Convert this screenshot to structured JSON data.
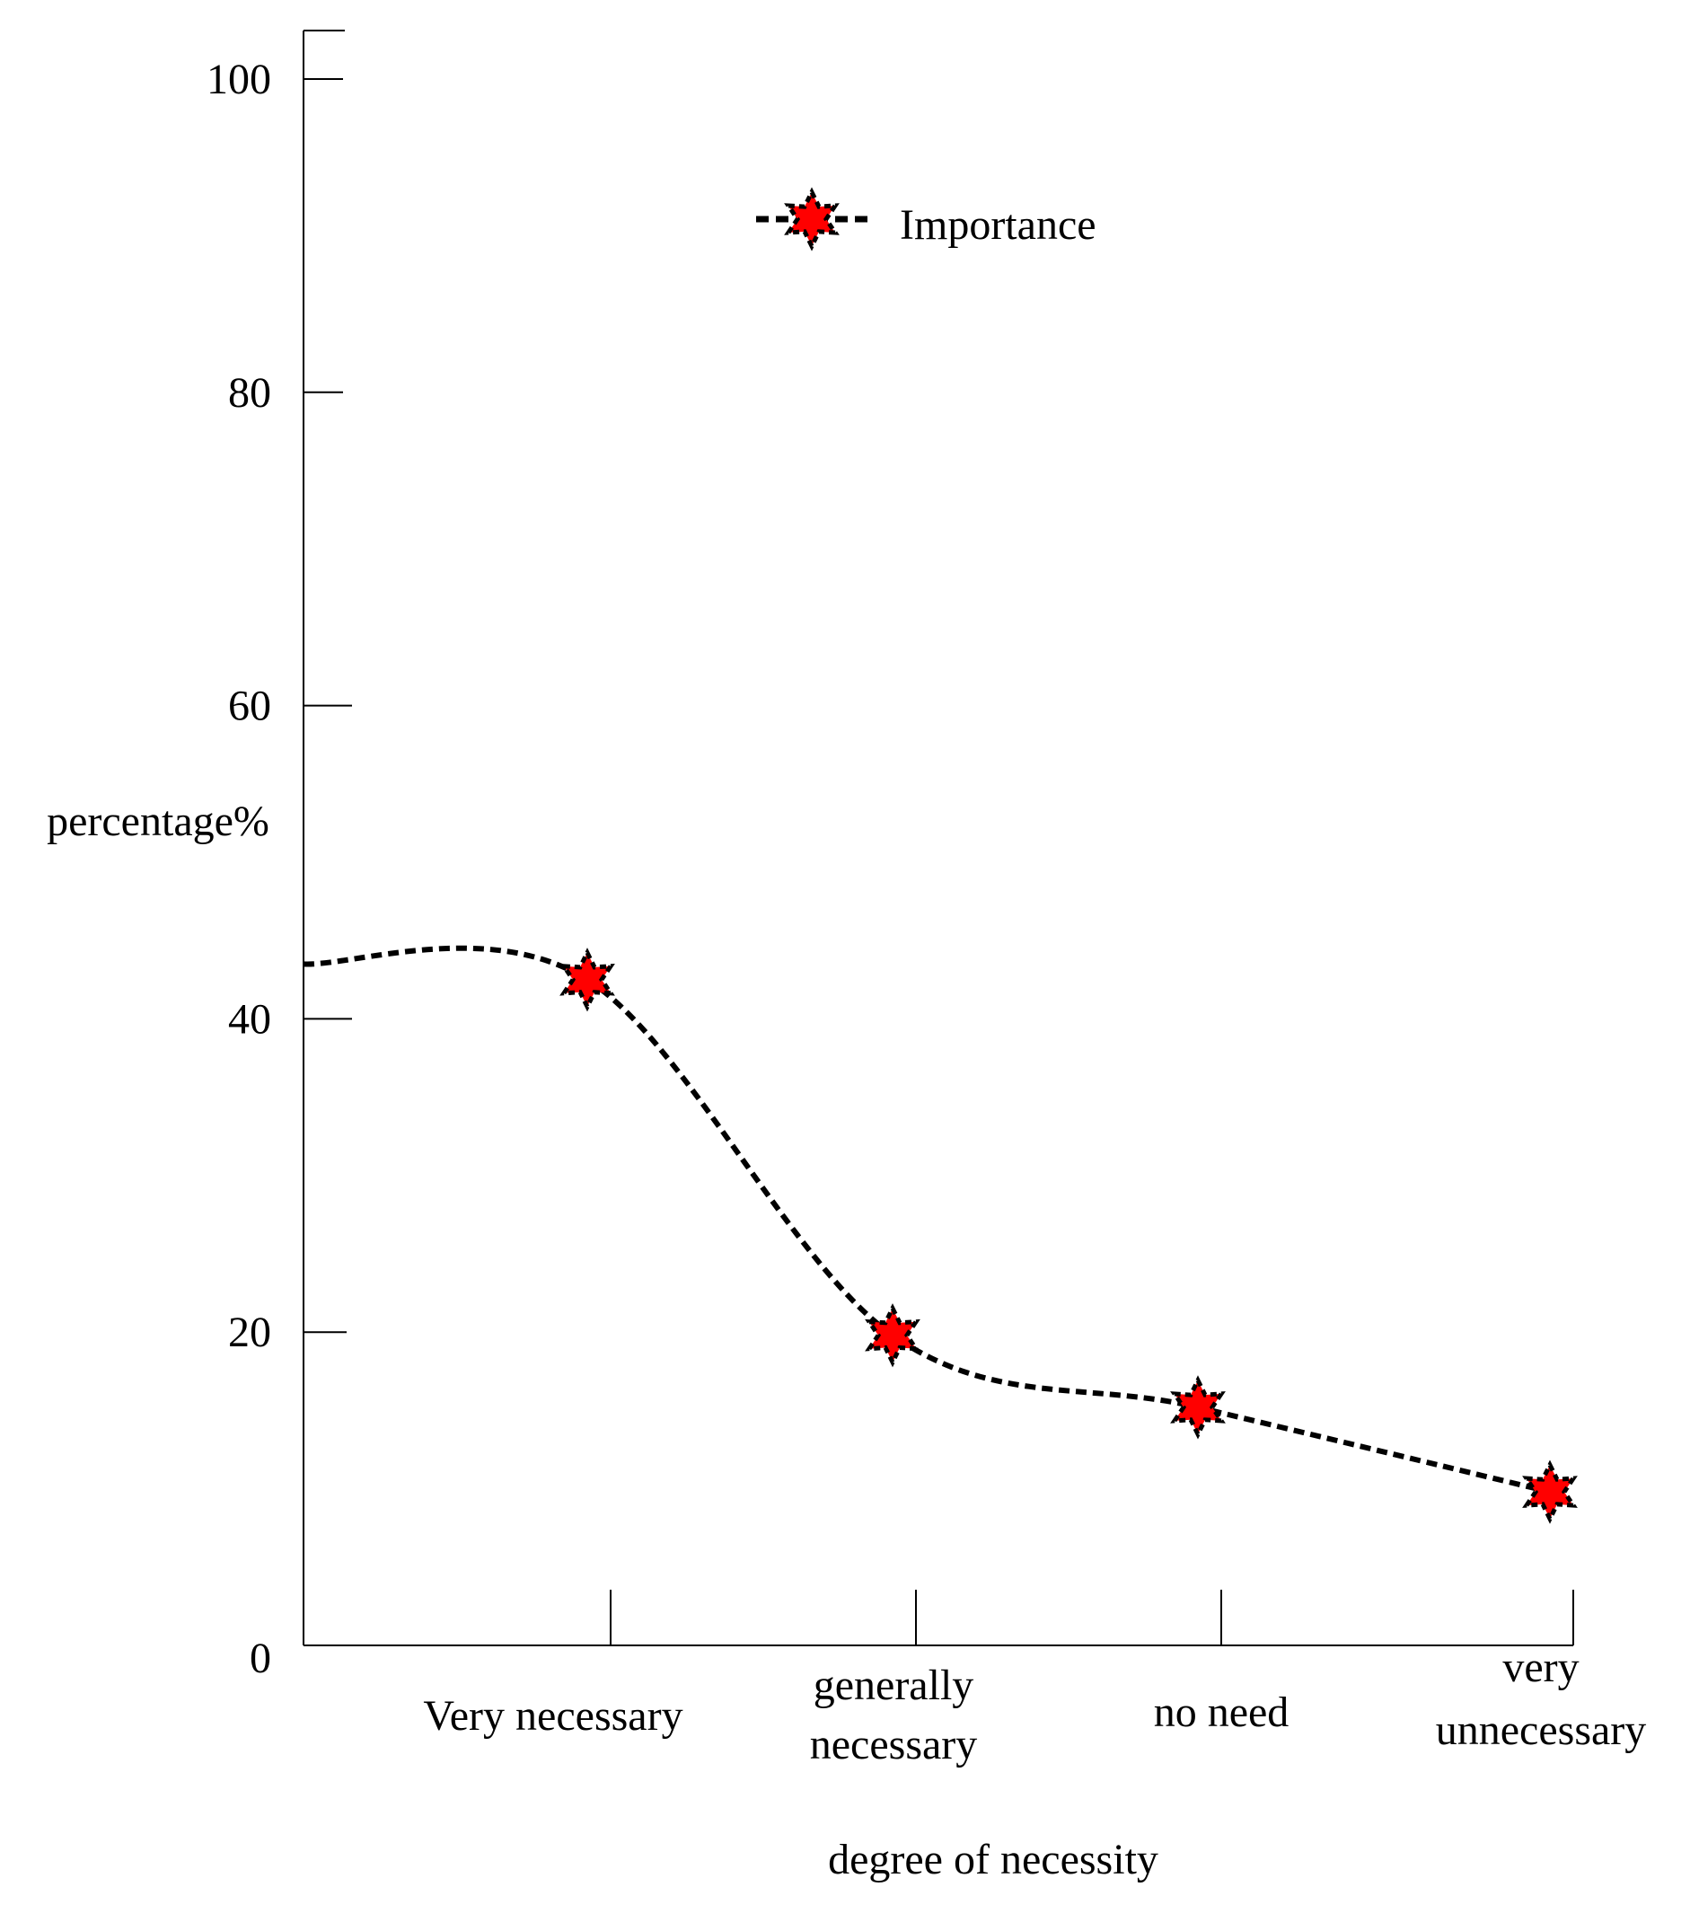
{
  "chart_data": {
    "type": "line",
    "title": "",
    "xlabel": "degree of necessity",
    "ylabel": "percentage%",
    "ylim": [
      0,
      100
    ],
    "y_ticks": [
      0,
      20,
      40,
      60,
      80,
      100
    ],
    "y_tick_labels": [
      "0",
      "20",
      "40",
      "60",
      "80",
      "100"
    ],
    "grid": false,
    "legend_position": "top-center",
    "categories": [
      [
        "Very necessary"
      ],
      [
        "generally",
        "necessary"
      ],
      [
        "no need"
      ],
      [
        "very",
        "unnecessary"
      ]
    ],
    "series": [
      {
        "name": "Importance",
        "line_style": "dashed",
        "line_color": "#000000",
        "marker": "star",
        "marker_color": "#ff0000",
        "start_value": 43.5,
        "values": [
          42.5,
          19.8,
          15.2,
          9.8
        ]
      }
    ]
  }
}
